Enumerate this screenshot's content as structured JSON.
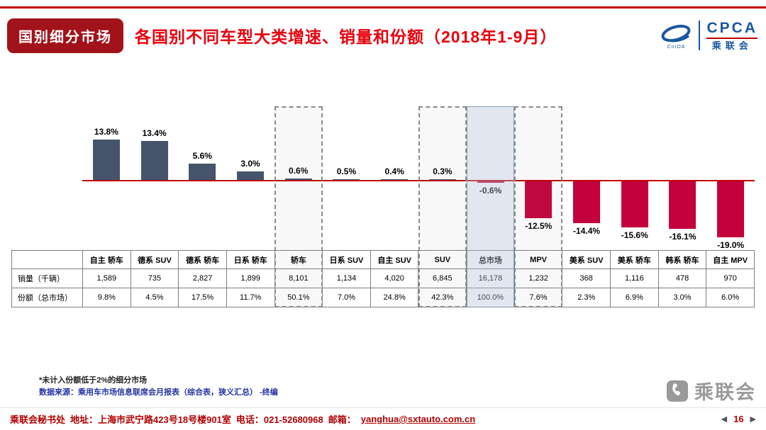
{
  "header": {
    "badge": "国别细分市场",
    "title": "各国别不同车型大类增速、销量和份额（2018年1-9月）",
    "logo": {
      "cpca": "CPCA",
      "cn": "乘联会",
      "sub": "CnIDA"
    }
  },
  "theme": {
    "brand_red": "#C00000",
    "title_red": "#E8000D",
    "badge_bg": "#A2121A",
    "logo_blue": "#1A57A0",
    "source_blue": "#2433A6",
    "footer_red": "#B00000",
    "watermark_gray": "#9A9A9A"
  },
  "chart_data": {
    "type": "bar",
    "title": "各国别不同车型大类增速、销量和份额（2018年1-9月）",
    "unit": "%",
    "categories": [
      "自主 轿车",
      "德系 SUV",
      "德系 轿车",
      "日系 轿车",
      "轿车",
      "日系 SUV",
      "自主 SUV",
      "SUV",
      "总市场",
      "MPV",
      "美系 SUV",
      "美系 轿车",
      "韩系 轿车",
      "自主 MPV"
    ],
    "values": [
      13.8,
      13.4,
      5.6,
      3.0,
      0.6,
      0.5,
      0.4,
      0.3,
      -0.6,
      -12.5,
      -14.4,
      -15.6,
      -16.1,
      -19.0
    ],
    "value_labels": [
      "13.8%",
      "13.4%",
      "5.6%",
      "3.0%",
      "0.6%",
      "0.5%",
      "0.4%",
      "0.3%",
      "-0.6%",
      "-12.5%",
      "-14.4%",
      "-15.6%",
      "-16.1%",
      "-19.0%"
    ],
    "ylim": [
      -20,
      15
    ],
    "grid": false,
    "legend": false,
    "highlight": {
      "dashed_columns": [
        "轿车",
        "SUV",
        "MPV"
      ],
      "dashed_indices": [
        4,
        7,
        9
      ],
      "shaded_column": "总市场",
      "shaded_index": 8
    },
    "colors": {
      "positive": "#44546A",
      "negative": "#C4003D",
      "zero_line": "#C00000"
    }
  },
  "table": {
    "corner": "",
    "rows": [
      {
        "label": "销量（千辆）",
        "values": [
          "1,589",
          "735",
          "2,827",
          "1,899",
          "8,101",
          "1,134",
          "4,020",
          "6,845",
          "16,178",
          "1,232",
          "368",
          "1,116",
          "478",
          "970"
        ]
      },
      {
        "label": "份额（总市场）",
        "values": [
          "9.8%",
          "4.5%",
          "17.5%",
          "11.7%",
          "50.1%",
          "7.0%",
          "24.8%",
          "42.3%",
          "100.0%",
          "7.6%",
          "2.3%",
          "6.9%",
          "3.0%",
          "6.0%"
        ]
      }
    ]
  },
  "footnotes": {
    "note1": "*未计入份额低于2%的细分市场",
    "source": "数据来源：乘用车市场信息联席会月报表（综合表，狭义汇总）  -终编"
  },
  "watermark": {
    "text": "乘联会"
  },
  "footer": {
    "org": "乘联会秘书处",
    "address": "地址：上海市武宁路423号18号楼901室",
    "phone": "电话：021-52680968",
    "email_label": "邮箱：",
    "email": "yanghua@sxtauto.com.cn",
    "page": "16"
  }
}
